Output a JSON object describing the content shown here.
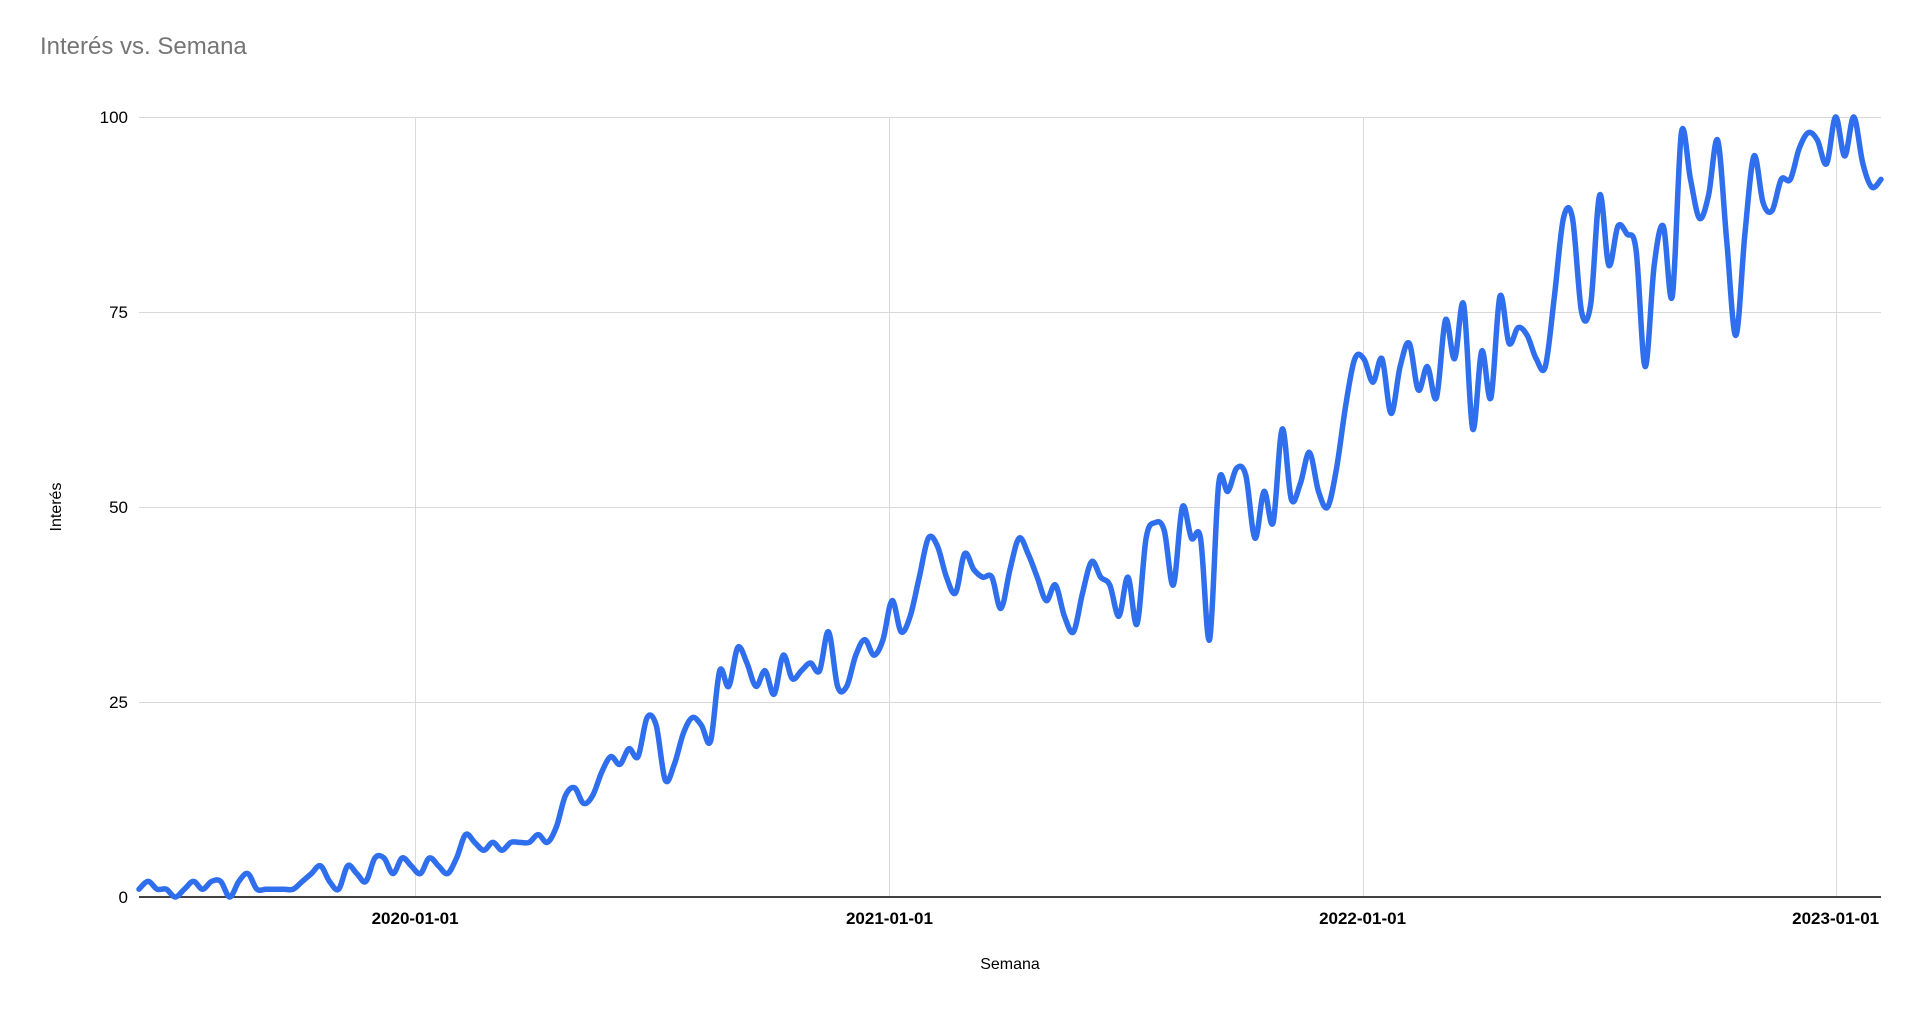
{
  "title": {
    "text": "Interés vs. Semana",
    "color": "#757575"
  },
  "colors": {
    "background": "#ffffff",
    "gridline": "#d9d9d9",
    "axis_line": "#424242",
    "tick_label": "#000000",
    "series_line": "#2f6fed",
    "title": "#757575"
  },
  "chart_data": {
    "type": "line",
    "title": "Interés vs. Semana",
    "xlabel": "Semana",
    "ylabel": "Interés",
    "legend_position": "none",
    "grid": true,
    "y_axis": {
      "min": 0,
      "max": 100,
      "ticks": [
        0,
        25,
        50,
        75,
        100
      ]
    },
    "x_axis": {
      "unit": "week",
      "start_date": "2019-06-02",
      "step_days": 7,
      "tick_labels": [
        "2020-01-01",
        "2021-01-01",
        "2022-01-01",
        "2023-01-01"
      ]
    },
    "series": [
      {
        "name": "Interés",
        "color": "#2f6fed",
        "values": [
          1,
          2,
          1,
          1,
          0,
          1,
          2,
          1,
          2,
          2,
          0,
          2,
          3,
          1,
          1,
          1,
          1,
          1,
          2,
          3,
          4,
          2,
          1,
          4,
          3,
          2,
          5,
          5,
          3,
          5,
          4,
          3,
          5,
          4,
          3,
          5,
          8,
          7,
          6,
          7,
          6,
          7,
          7,
          7,
          8,
          7,
          9,
          13,
          14,
          12,
          13,
          16,
          18,
          17,
          19,
          18,
          23,
          22,
          15,
          17,
          21,
          23,
          22,
          20,
          29,
          27,
          32,
          30,
          27,
          29,
          26,
          31,
          28,
          29,
          30,
          29,
          34,
          27,
          27,
          31,
          33,
          31,
          33,
          38,
          34,
          36,
          41,
          46,
          45,
          41,
          39,
          44,
          42,
          41,
          41,
          37,
          42,
          46,
          44,
          41,
          38,
          40,
          36,
          34,
          39,
          43,
          41,
          40,
          36,
          41,
          35,
          46,
          48,
          47,
          40,
          50,
          46,
          46,
          33,
          53,
          52,
          55,
          54,
          46,
          52,
          48,
          60,
          51,
          53,
          57,
          52,
          50,
          55,
          63,
          69,
          69,
          66,
          69,
          62,
          68,
          71,
          65,
          68,
          64,
          74,
          69,
          76,
          60,
          70,
          64,
          77,
          71,
          73,
          72,
          69,
          68,
          77,
          87,
          87,
          75,
          76,
          90,
          81,
          86,
          85,
          83,
          68,
          81,
          86,
          77,
          98,
          92,
          87,
          90,
          97,
          84,
          72,
          85,
          95,
          89,
          88,
          92,
          92,
          96,
          98,
          97,
          94,
          100,
          95,
          100,
          94,
          91,
          92
        ]
      }
    ]
  }
}
